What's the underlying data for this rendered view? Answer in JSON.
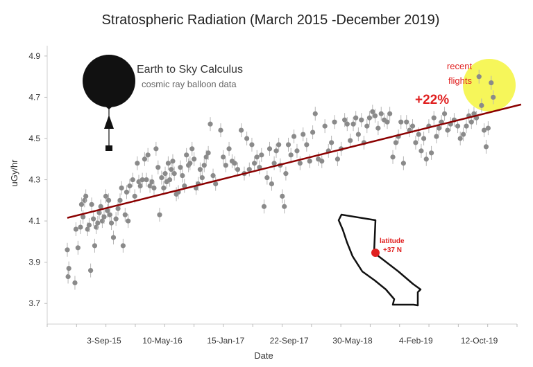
{
  "chart_data": {
    "type": "scatter",
    "title": "Stratospheric Radiation (March 2015 -December 2019)",
    "xlabel": "Date",
    "ylabel": "uGy/hr",
    "ylim": [
      3.6,
      4.95
    ],
    "xlim": [
      0,
      1830
    ],
    "y_ticks": [
      3.7,
      3.9,
      4.1,
      4.3,
      4.5,
      4.7,
      4.9
    ],
    "y_tick_labels": [
      "3.7",
      "3.9",
      "4.1",
      "4.3",
      "4.5",
      "4.7",
      "4.9"
    ],
    "x_ticks": [
      145,
      375,
      625,
      875,
      1125,
      1375,
      1625
    ],
    "x_tick_labels": [
      "3-Sep-15",
      "10-May-16",
      "15-Jan-17",
      "22-Sep-17",
      "30-May-18",
      "4-Feb-19",
      "12-Oct-19"
    ],
    "trend": {
      "x_start": 0,
      "y_start": 4.115,
      "x_end": 1790,
      "y_end": 4.665,
      "color": "#8b0000"
    },
    "series": [
      {
        "name": "cosmic ray balloon data",
        "color": "#8a8a8a",
        "points": [
          [
            0,
            3.96
          ],
          [
            3,
            3.83
          ],
          [
            6,
            3.87
          ],
          [
            30,
            3.8
          ],
          [
            34,
            4.06
          ],
          [
            42,
            3.97
          ],
          [
            52,
            4.07
          ],
          [
            56,
            4.18
          ],
          [
            62,
            4.12
          ],
          [
            68,
            4.2
          ],
          [
            73,
            4.22
          ],
          [
            80,
            4.06
          ],
          [
            86,
            4.08
          ],
          [
            92,
            3.86
          ],
          [
            96,
            4.18
          ],
          [
            103,
            4.11
          ],
          [
            108,
            3.98
          ],
          [
            114,
            4.07
          ],
          [
            120,
            4.09
          ],
          [
            126,
            4.14
          ],
          [
            132,
            4.17
          ],
          [
            138,
            4.1
          ],
          [
            145,
            4.12
          ],
          [
            152,
            4.22
          ],
          [
            158,
            4.15
          ],
          [
            163,
            4.2
          ],
          [
            168,
            4.13
          ],
          [
            174,
            4.09
          ],
          [
            182,
            4.02
          ],
          [
            192,
            4.11
          ],
          [
            200,
            4.16
          ],
          [
            208,
            4.2
          ],
          [
            214,
            4.26
          ],
          [
            220,
            3.98
          ],
          [
            228,
            4.13
          ],
          [
            234,
            4.24
          ],
          [
            240,
            4.1
          ],
          [
            246,
            4.27
          ],
          [
            258,
            4.3
          ],
          [
            266,
            4.22
          ],
          [
            276,
            4.38
          ],
          [
            282,
            4.29
          ],
          [
            288,
            4.27
          ],
          [
            296,
            4.3
          ],
          [
            305,
            4.4
          ],
          [
            312,
            4.3
          ],
          [
            318,
            4.42
          ],
          [
            326,
            4.27
          ],
          [
            334,
            4.29
          ],
          [
            342,
            4.26
          ],
          [
            350,
            4.45
          ],
          [
            358,
            4.36
          ],
          [
            364,
            4.13
          ],
          [
            372,
            4.31
          ],
          [
            380,
            4.26
          ],
          [
            386,
            4.33
          ],
          [
            392,
            4.29
          ],
          [
            398,
            4.38
          ],
          [
            404,
            4.3
          ],
          [
            410,
            4.35
          ],
          [
            416,
            4.39
          ],
          [
            422,
            4.33
          ],
          [
            430,
            4.23
          ],
          [
            438,
            4.24
          ],
          [
            446,
            4.36
          ],
          [
            454,
            4.32
          ],
          [
            462,
            4.27
          ],
          [
            470,
            4.42
          ],
          [
            478,
            4.37
          ],
          [
            484,
            4.38
          ],
          [
            492,
            4.45
          ],
          [
            500,
            4.4
          ],
          [
            508,
            4.26
          ],
          [
            516,
            4.28
          ],
          [
            524,
            4.35
          ],
          [
            532,
            4.31
          ],
          [
            540,
            4.37
          ],
          [
            548,
            4.41
          ],
          [
            556,
            4.43
          ],
          [
            564,
            4.57
          ],
          [
            575,
            4.32
          ],
          [
            585,
            4.28
          ],
          [
            605,
            4.54
          ],
          [
            615,
            4.41
          ],
          [
            625,
            4.37
          ],
          [
            638,
            4.45
          ],
          [
            650,
            4.39
          ],
          [
            660,
            4.38
          ],
          [
            672,
            4.35
          ],
          [
            686,
            4.54
          ],
          [
            698,
            4.33
          ],
          [
            708,
            4.5
          ],
          [
            718,
            4.35
          ],
          [
            728,
            4.47
          ],
          [
            738,
            4.38
          ],
          [
            748,
            4.41
          ],
          [
            758,
            4.36
          ],
          [
            766,
            4.42
          ],
          [
            776,
            4.17
          ],
          [
            788,
            4.31
          ],
          [
            798,
            4.45
          ],
          [
            806,
            4.28
          ],
          [
            816,
            4.38
          ],
          [
            824,
            4.44
          ],
          [
            834,
            4.47
          ],
          [
            840,
            4.37
          ],
          [
            848,
            4.22
          ],
          [
            856,
            4.17
          ],
          [
            862,
            4.33
          ],
          [
            872,
            4.47
          ],
          [
            882,
            4.42
          ],
          [
            894,
            4.51
          ],
          [
            906,
            4.44
          ],
          [
            918,
            4.38
          ],
          [
            930,
            4.52
          ],
          [
            944,
            4.47
          ],
          [
            956,
            4.39
          ],
          [
            968,
            4.53
          ],
          [
            978,
            4.62
          ],
          [
            990,
            4.4
          ],
          [
            1004,
            4.39
          ],
          [
            1016,
            4.56
          ],
          [
            1030,
            4.44
          ],
          [
            1042,
            4.48
          ],
          [
            1054,
            4.58
          ],
          [
            1066,
            4.4
          ],
          [
            1080,
            4.45
          ],
          [
            1094,
            4.59
          ],
          [
            1104,
            4.57
          ],
          [
            1116,
            4.49
          ],
          [
            1128,
            4.57
          ],
          [
            1138,
            4.6
          ],
          [
            1148,
            4.52
          ],
          [
            1160,
            4.59
          ],
          [
            1170,
            4.48
          ],
          [
            1182,
            4.56
          ],
          [
            1192,
            4.6
          ],
          [
            1204,
            4.63
          ],
          [
            1214,
            4.61
          ],
          [
            1226,
            4.55
          ],
          [
            1238,
            4.62
          ],
          [
            1250,
            4.59
          ],
          [
            1262,
            4.58
          ],
          [
            1272,
            4.62
          ],
          [
            1284,
            4.41
          ],
          [
            1296,
            4.48
          ],
          [
            1306,
            4.51
          ],
          [
            1316,
            4.58
          ],
          [
            1326,
            4.38
          ],
          [
            1338,
            4.58
          ],
          [
            1350,
            4.54
          ],
          [
            1362,
            4.56
          ],
          [
            1374,
            4.48
          ],
          [
            1386,
            4.52
          ],
          [
            1396,
            4.44
          ],
          [
            1406,
            4.5
          ],
          [
            1416,
            4.4
          ],
          [
            1426,
            4.56
          ],
          [
            1436,
            4.43
          ],
          [
            1446,
            4.6
          ],
          [
            1456,
            4.51
          ],
          [
            1466,
            4.55
          ],
          [
            1476,
            4.58
          ],
          [
            1488,
            4.62
          ],
          [
            1500,
            4.54
          ],
          [
            1512,
            4.57
          ],
          [
            1526,
            4.59
          ],
          [
            1540,
            4.56
          ],
          [
            1550,
            4.5
          ],
          [
            1562,
            4.52
          ],
          [
            1574,
            4.56
          ],
          [
            1584,
            4.61
          ],
          [
            1594,
            4.58
          ],
          [
            1604,
            4.62
          ],
          [
            1614,
            4.6
          ],
          [
            1624,
            4.8
          ],
          [
            1634,
            4.66
          ],
          [
            1644,
            4.54
          ],
          [
            1652,
            4.46
          ],
          [
            1660,
            4.55
          ],
          [
            1672,
            4.77
          ],
          [
            1680,
            4.7
          ]
        ]
      }
    ]
  },
  "annotations": {
    "brand_title": "Earth to Sky Calculus",
    "brand_subtitle": "cosmic ray balloon data",
    "recent_line1": "recent",
    "recent_line2": "flights",
    "percent_change": "+22%",
    "latitude_line1": "latitude",
    "latitude_line2": "+37 N",
    "highlight_color": "#f5f53d",
    "marker_color": "#e02020"
  }
}
